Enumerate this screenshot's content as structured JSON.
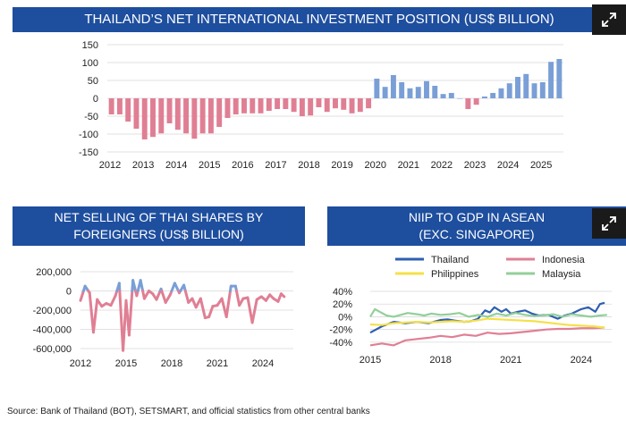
{
  "source": "Source: Bank of Thailand (BOT), SETSMART, and official statistics from other central banks",
  "icons": {
    "expand": "expand-arrows-icon"
  },
  "chart_data": [
    {
      "id": "niip",
      "type": "bar",
      "title": "THAILAND’S NET INTERNATIONAL INVESTMENT POSITION (US$ BILLION)",
      "ylim": [
        -150,
        150
      ],
      "yticks": [
        -150,
        -100,
        -50,
        0,
        50,
        100,
        150
      ],
      "xticks": [
        "2012",
        "2013",
        "2014",
        "2015",
        "2016",
        "2017",
        "2018",
        "2019",
        "2020",
        "2021",
        "2022",
        "2023",
        "2024",
        "2025"
      ],
      "start": 2012.0,
      "step": 0.25,
      "positive_color": "#7a9fd6",
      "negative_color": "#e07f94",
      "values": [
        -45,
        -45,
        -65,
        -85,
        -115,
        -108,
        -98,
        -70,
        -88,
        -98,
        -113,
        -98,
        -98,
        -80,
        -55,
        -45,
        -42,
        -42,
        -42,
        -35,
        -30,
        -30,
        -38,
        -50,
        -48,
        -25,
        -38,
        -28,
        -32,
        -42,
        -38,
        -28,
        55,
        32,
        65,
        45,
        28,
        32,
        48,
        35,
        12,
        15,
        0,
        -30,
        -18,
        5,
        15,
        28,
        42,
        60,
        68,
        42,
        45,
        102,
        110
      ]
    },
    {
      "id": "net-selling",
      "type": "line",
      "title": [
        "NET SELLING OF THAI SHARES BY",
        "FOREIGNERS (US$ BILLION)"
      ],
      "ylim": [
        -600000,
        200000
      ],
      "yticks": [
        200000,
        0,
        -200000,
        -400000,
        -600000
      ],
      "ytick_labels": [
        "200,000",
        "0",
        "-200,000",
        "-400,000",
        "-600,000"
      ],
      "xlim": [
        2012,
        2026
      ],
      "xticks": [
        2012,
        2015,
        2018,
        2021,
        2024
      ],
      "threshold": 0,
      "positive_color": "#7a9fd6",
      "negative_color": "#e07f94",
      "x": [
        2012.0,
        2012.3,
        2012.6,
        2012.85,
        2013.1,
        2013.4,
        2013.7,
        2014.0,
        2014.3,
        2014.55,
        2014.8,
        2015.0,
        2015.2,
        2015.45,
        2015.7,
        2015.95,
        2016.2,
        2016.5,
        2016.75,
        2017.0,
        2017.3,
        2017.6,
        2017.9,
        2018.2,
        2018.5,
        2018.8,
        2019.1,
        2019.35,
        2019.6,
        2019.9,
        2020.2,
        2020.45,
        2020.7,
        2021.0,
        2021.3,
        2021.6,
        2021.9,
        2022.2,
        2022.45,
        2022.7,
        2023.0,
        2023.3,
        2023.6,
        2023.9,
        2024.2,
        2024.45,
        2024.7,
        2025.0,
        2025.2,
        2025.4
      ],
      "values": [
        -100000,
        50000,
        -20000,
        -430000,
        -90000,
        -160000,
        -130000,
        -150000,
        -50000,
        80000,
        -620000,
        -100000,
        -460000,
        110000,
        -50000,
        110000,
        -80000,
        0,
        -30000,
        -90000,
        20000,
        -120000,
        -40000,
        80000,
        -20000,
        60000,
        -120000,
        -80000,
        -170000,
        -80000,
        -280000,
        -270000,
        -160000,
        -150000,
        -80000,
        -270000,
        50000,
        50000,
        -150000,
        -80000,
        -70000,
        -330000,
        -90000,
        -60000,
        -100000,
        -40000,
        -80000,
        -110000,
        -30000,
        -60000
      ]
    },
    {
      "id": "niip-gdp",
      "type": "line",
      "title": [
        "NIIP TO GDP IN ASEAN",
        "(EXC. SINGAPORE)"
      ],
      "ylim": [
        -50,
        40
      ],
      "yticks": [
        40,
        20,
        0,
        -20,
        -40
      ],
      "ytick_labels": [
        "40%",
        "20%",
        "0%",
        "-20%",
        "-40%"
      ],
      "xlim": [
        2015,
        2025.3
      ],
      "xticks": [
        2015,
        2018,
        2021,
        2024
      ],
      "series": [
        {
          "name": "Thailand",
          "color": "#2e5fb0",
          "x": [
            2015.0,
            2015.5,
            2016.0,
            2016.5,
            2017.0,
            2017.5,
            2018.0,
            2018.3,
            2018.6,
            2019.0,
            2019.3,
            2019.6,
            2019.9,
            2020.1,
            2020.3,
            2020.6,
            2020.8,
            2021.0,
            2021.3,
            2021.6,
            2021.9,
            2022.2,
            2022.6,
            2023.0,
            2023.3,
            2023.6,
            2024.0,
            2024.3,
            2024.6,
            2024.8,
            2025.0
          ],
          "values": [
            -25,
            -15,
            -8,
            -10,
            -8,
            -10,
            -5,
            -4,
            -6,
            -8,
            -7,
            -3,
            10,
            7,
            15,
            8,
            12,
            5,
            8,
            10,
            5,
            2,
            3,
            -3,
            2,
            5,
            12,
            15,
            8,
            20,
            22
          ]
        },
        {
          "name": "Indonesia",
          "color": "#e07f94",
          "x": [
            2015,
            2015.5,
            2016,
            2016.5,
            2017,
            2017.5,
            2018,
            2018.5,
            2019,
            2019.5,
            2020,
            2020.5,
            2021,
            2021.5,
            2022,
            2022.5,
            2023,
            2023.5,
            2024,
            2024.5,
            2025
          ],
          "values": [
            -45,
            -42,
            -45,
            -37,
            -35,
            -33,
            -30,
            -32,
            -28,
            -30,
            -25,
            -27,
            -26,
            -24,
            -22,
            -20,
            -19,
            -19,
            -18,
            -18,
            -17
          ]
        },
        {
          "name": "Philippines",
          "color": "#f5e04a",
          "x": [
            2015,
            2015.5,
            2016,
            2016.5,
            2017,
            2017.5,
            2018,
            2018.5,
            2019,
            2019.5,
            2020,
            2020.5,
            2021,
            2021.5,
            2022,
            2022.5,
            2023,
            2023.5,
            2024,
            2024.5,
            2025
          ],
          "values": [
            -12,
            -13,
            -10,
            -9,
            -8,
            -9,
            -8,
            -7,
            -8,
            -6,
            -3,
            -4,
            -5,
            -6,
            -7,
            -9,
            -11,
            -13,
            -14,
            -15,
            -17
          ]
        },
        {
          "name": "Malaysia",
          "color": "#93cf9a",
          "x": [
            2015.0,
            2015.2,
            2015.4,
            2015.7,
            2016.0,
            2016.3,
            2016.6,
            2017.0,
            2017.3,
            2017.6,
            2018.0,
            2018.4,
            2018.8,
            2019.2,
            2019.6,
            2020.0,
            2020.4,
            2020.8,
            2021.2,
            2021.6,
            2022.0,
            2022.4,
            2022.8,
            2023.2,
            2023.6,
            2024.0,
            2024.4,
            2024.8,
            2025.1
          ],
          "values": [
            0,
            12,
            8,
            2,
            0,
            3,
            6,
            4,
            2,
            5,
            3,
            4,
            6,
            0,
            3,
            0,
            5,
            2,
            6,
            3,
            1,
            2,
            4,
            0,
            4,
            2,
            0,
            2,
            3
          ]
        }
      ]
    }
  ]
}
